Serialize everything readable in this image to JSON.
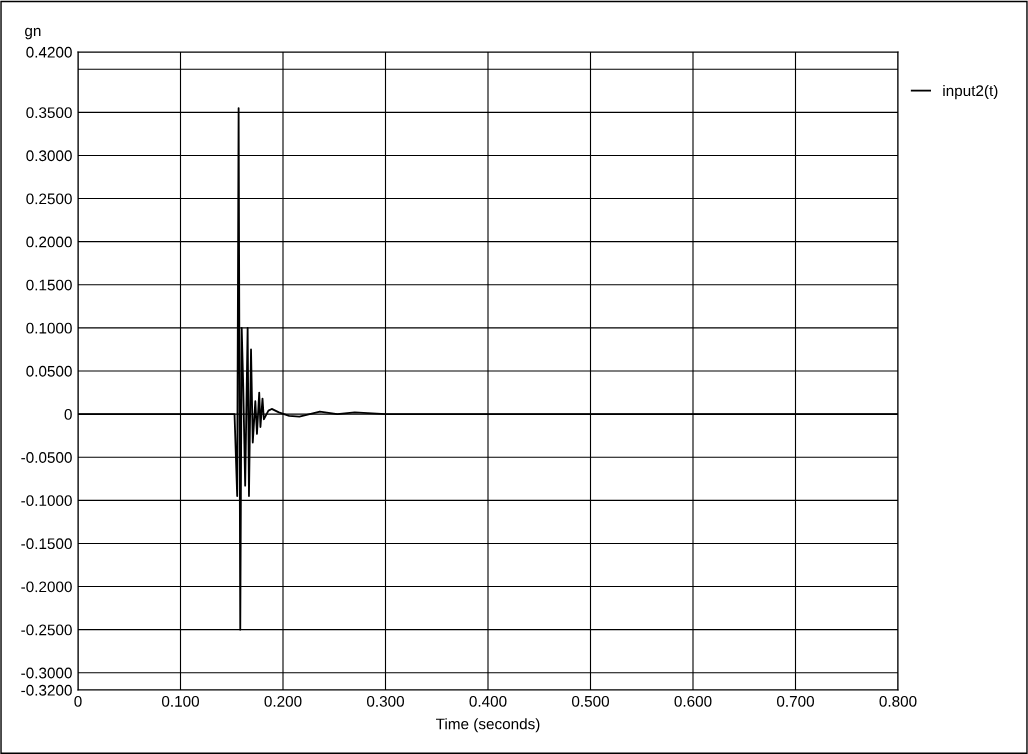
{
  "chart_data": {
    "type": "line",
    "xlabel": "Time (seconds)",
    "ylabel": "gn",
    "series": [
      {
        "name": "input2(t)",
        "color": "#000000",
        "x": [
          0,
          0.05,
          0.1,
          0.1527,
          0.1553,
          0.1567,
          0.1583,
          0.1597,
          0.1612,
          0.1631,
          0.1655,
          0.1668,
          0.1688,
          0.1705,
          0.173,
          0.1746,
          0.1768,
          0.178,
          0.18,
          0.1813,
          0.1858,
          0.189,
          0.196,
          0.206,
          0.216,
          0.236,
          0.253,
          0.27,
          0.3,
          0.4,
          0.5,
          0.6,
          0.7,
          0.8
        ],
        "values": [
          0,
          0,
          0,
          0,
          -0.095,
          0.355,
          -0.25,
          0.1,
          0.033,
          -0.083,
          0.1,
          -0.095,
          0.075,
          -0.033,
          0.015,
          -0.023,
          0.025,
          -0.015,
          0.018,
          -0.006,
          0.004,
          0.006,
          0.002,
          -0.002,
          -0.003,
          0.003,
          0,
          0.002,
          0,
          0,
          0,
          0,
          0,
          0
        ]
      }
    ],
    "xlim": [
      0,
      0.8
    ],
    "xticks": [
      0,
      {
        "value": 0.1,
        "label": "0.100"
      },
      {
        "value": 0.2,
        "label": "0.200"
      },
      {
        "value": 0.3,
        "label": "0.300"
      },
      {
        "value": 0.4,
        "label": "0.400"
      },
      {
        "value": 0.5,
        "label": "0.500"
      },
      {
        "value": 0.6,
        "label": "0.600"
      },
      {
        "value": 0.7,
        "label": "0.700"
      },
      {
        "value": 0.8,
        "label": "0.800"
      }
    ],
    "ylim": [
      -0.32,
      0.42
    ],
    "yticks": [
      {
        "value": -0.32,
        "label": "-0.3200"
      },
      {
        "value": -0.3,
        "label": "-0.3000"
      },
      {
        "value": -0.25,
        "label": "-0.2500"
      },
      {
        "value": -0.2,
        "label": "-0.2000"
      },
      {
        "value": -0.15,
        "label": "-0.1500"
      },
      {
        "value": -0.1,
        "label": "-0.1000"
      },
      {
        "value": -0.05,
        "label": "-0.0500"
      },
      0,
      {
        "value": 0.05,
        "label": "0.0500"
      },
      {
        "value": 0.1,
        "label": "0.1000"
      },
      {
        "value": 0.15,
        "label": "0.1500"
      },
      {
        "value": 0.2,
        "label": "0.2000"
      },
      {
        "value": 0.25,
        "label": "0.2500"
      },
      {
        "value": 0.3,
        "label": "0.3000"
      },
      {
        "value": 0.35,
        "label": "0.3500"
      },
      {
        "value": 0.4,
        "label": null
      },
      {
        "value": 0.42,
        "label": "0.4200"
      }
    ],
    "grid": true,
    "legend": "top right"
  }
}
